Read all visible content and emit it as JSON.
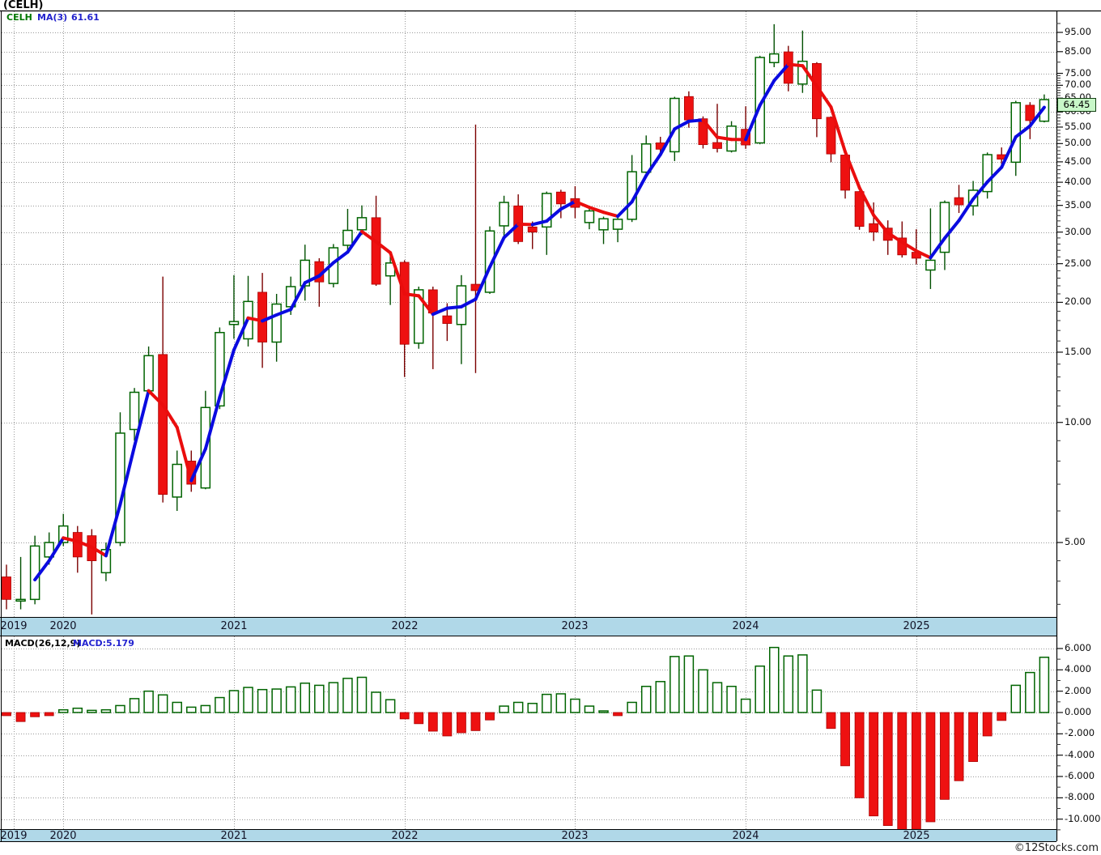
{
  "header": {
    "title": "(CELH)",
    "legend_symbol": "CELH",
    "legend_ma_label": "MA(3)",
    "legend_ma_value": "61.61"
  },
  "macd_panel": {
    "param_label": "MACD(26,12,9)",
    "value_label": "MACD:5.179"
  },
  "current_price_tag": "64.45",
  "watermark": "©12Stocks.com",
  "colors": {
    "candle_up_stroke": "#006400",
    "candle_up_wick": "#004f00",
    "candle_down_fill": "#ee1111",
    "candle_down_wick": "#7b0000",
    "ma_rising": "#0a0ae0",
    "ma_falling": "#ea0d0d",
    "grid": "#999999",
    "axis_band": "#b0d8e8",
    "tag_bg": "#c8f7c8",
    "macd_up_stroke": "#006400",
    "macd_down_fill": "#ee1111"
  },
  "x_axis": {
    "years": [
      "2019",
      "2020",
      "2021",
      "2022",
      "2023",
      "2024",
      "2025"
    ],
    "tick_x": [
      17,
      78,
      289,
      500,
      710,
      921,
      1132
    ]
  },
  "price_axis": {
    "labels": [
      {
        "value": 95,
        "label": "95.00"
      },
      {
        "value": 85,
        "label": "85.00"
      },
      {
        "value": 75,
        "label": "75.00"
      },
      {
        "value": 70,
        "label": "70.00"
      },
      {
        "value": 65,
        "label": "65.00"
      },
      {
        "value": 60,
        "label": "60.00"
      },
      {
        "value": 55,
        "label": "55.00"
      },
      {
        "value": 50,
        "label": "50.00"
      },
      {
        "value": 45,
        "label": "45.00"
      },
      {
        "value": 40,
        "label": "40.00"
      },
      {
        "value": 35,
        "label": "35.00"
      },
      {
        "value": 30,
        "label": "30.00"
      },
      {
        "value": 25,
        "label": "25.00"
      },
      {
        "value": 20,
        "label": "20.00"
      },
      {
        "value": 15,
        "label": "15.00"
      },
      {
        "value": 10,
        "label": "10.00"
      },
      {
        "value": 5,
        "label": "5.00"
      }
    ],
    "scale": "log"
  },
  "macd_axis": {
    "labels": [
      {
        "value": 6,
        "label": "6.000"
      },
      {
        "value": 4,
        "label": "4.000"
      },
      {
        "value": 2,
        "label": "2.000"
      },
      {
        "value": 0,
        "label": "0.000"
      },
      {
        "value": -2,
        "label": "-2.000"
      },
      {
        "value": -4,
        "label": "-4.000"
      },
      {
        "value": -6,
        "label": "-6.000"
      },
      {
        "value": -8,
        "label": "-8.000"
      },
      {
        "value": -10,
        "label": "-10.000"
      }
    ]
  },
  "chart_data": {
    "type": "candlestick",
    "title": "(CELH)",
    "symbol": "CELH",
    "interval": "monthly",
    "price_scale": "log",
    "price_ylim": [
      3.2,
      100
    ],
    "overlay": {
      "name": "MA(3)",
      "period": 3,
      "last_value": 61.61,
      "style": "colored by slope: blue rising, red falling"
    },
    "indicator": {
      "name": "MACD(26,12,9)",
      "last_value": 5.179,
      "ylim": [
        -11.5,
        6.5
      ],
      "grid_step": 2
    },
    "months": [
      "2019-09",
      "2019-10",
      "2019-11",
      "2019-12",
      "2020-01",
      "2020-02",
      "2020-03",
      "2020-04",
      "2020-05",
      "2020-06",
      "2020-07",
      "2020-08",
      "2020-09",
      "2020-10",
      "2020-11",
      "2020-12",
      "2021-01",
      "2021-02",
      "2021-03",
      "2021-04",
      "2021-05",
      "2021-06",
      "2021-07",
      "2021-08",
      "2021-09",
      "2021-10",
      "2021-11",
      "2021-12",
      "2022-01",
      "2022-02",
      "2022-03",
      "2022-04",
      "2022-05",
      "2022-06",
      "2022-07",
      "2022-08",
      "2022-09",
      "2022-10",
      "2022-11",
      "2022-12",
      "2023-01",
      "2023-02",
      "2023-03",
      "2023-04",
      "2023-05",
      "2023-06",
      "2023-07",
      "2023-08",
      "2023-09",
      "2023-10",
      "2023-11",
      "2023-12",
      "2024-01",
      "2024-02",
      "2024-03",
      "2024-04",
      "2024-05",
      "2024-06",
      "2024-07",
      "2024-08",
      "2024-09",
      "2024-10",
      "2024-11",
      "2024-12",
      "2025-01",
      "2025-02",
      "2025-03",
      "2025-04",
      "2025-05",
      "2025-06",
      "2025-07",
      "2025-08",
      "2025-09",
      "2025-10"
    ],
    "ohlc": [
      [
        4.1,
        4.4,
        3.4,
        3.6
      ],
      [
        3.6,
        4.6,
        3.4,
        3.6
      ],
      [
        3.6,
        5.2,
        3.5,
        4.9
      ],
      [
        4.6,
        5.3,
        4.4,
        5.0
      ],
      [
        5.0,
        5.9,
        4.9,
        5.5
      ],
      [
        5.3,
        5.5,
        4.2,
        4.6
      ],
      [
        5.2,
        5.4,
        3.3,
        4.5
      ],
      [
        4.2,
        5.0,
        4.0,
        4.8
      ],
      [
        5.0,
        10.6,
        4.9,
        9.4
      ],
      [
        9.6,
        12.2,
        9.0,
        11.9
      ],
      [
        12.0,
        15.5,
        11.8,
        14.7
      ],
      [
        14.8,
        23.2,
        6.3,
        6.6
      ],
      [
        6.5,
        8.5,
        6.0,
        7.85
      ],
      [
        8.0,
        8.5,
        6.7,
        7.0
      ],
      [
        6.85,
        12.0,
        6.8,
        10.9
      ],
      [
        11.0,
        17.3,
        10.8,
        16.8
      ],
      [
        17.6,
        23.4,
        16.2,
        17.9
      ],
      [
        16.2,
        23.3,
        15.5,
        20.1
      ],
      [
        21.2,
        23.7,
        13.7,
        15.9
      ],
      [
        15.9,
        21.0,
        14.2,
        19.8
      ],
      [
        19.5,
        23.2,
        18.6,
        21.9
      ],
      [
        22.0,
        27.9,
        20.2,
        25.5
      ],
      [
        25.3,
        25.8,
        19.5,
        22.5
      ],
      [
        22.3,
        28.0,
        21.8,
        27.4
      ],
      [
        27.8,
        34.3,
        27.0,
        30.3
      ],
      [
        30.4,
        35.0,
        29.5,
        32.6
      ],
      [
        32.6,
        37.0,
        22.0,
        22.2
      ],
      [
        23.3,
        26.2,
        19.7,
        25.1
      ],
      [
        25.2,
        25.5,
        13.0,
        15.7
      ],
      [
        15.8,
        21.9,
        15.3,
        21.5
      ],
      [
        21.5,
        21.9,
        13.6,
        18.8
      ],
      [
        18.5,
        19.9,
        16.0,
        17.7
      ],
      [
        17.6,
        23.4,
        14.0,
        22.0
      ],
      [
        22.2,
        55.8,
        13.3,
        21.4
      ],
      [
        21.2,
        31.0,
        21.0,
        30.2
      ],
      [
        31.1,
        37.0,
        28.6,
        35.6
      ],
      [
        34.9,
        37.3,
        28.0,
        28.4
      ],
      [
        30.9,
        31.9,
        27.2,
        30.0
      ],
      [
        30.9,
        37.9,
        26.3,
        37.5
      ],
      [
        37.8,
        38.3,
        32.5,
        35.3
      ],
      [
        36.4,
        39.1,
        32.5,
        34.6
      ],
      [
        31.7,
        34.5,
        30.5,
        33.9
      ],
      [
        30.4,
        32.8,
        28.0,
        32.4
      ],
      [
        30.5,
        32.8,
        28.3,
        32.3
      ],
      [
        32.3,
        46.8,
        31.8,
        42.5
      ],
      [
        42.4,
        52.4,
        41.8,
        49.9
      ],
      [
        50.2,
        52.0,
        47.5,
        48.4
      ],
      [
        47.7,
        65.5,
        45.2,
        64.9
      ],
      [
        65.6,
        67.6,
        54.8,
        57.3
      ],
      [
        57.7,
        58.5,
        48.6,
        49.7
      ],
      [
        50.3,
        62.9,
        47.5,
        48.6
      ],
      [
        47.9,
        56.9,
        47.5,
        55.3
      ],
      [
        54.3,
        62.0,
        48.5,
        49.6
      ],
      [
        50.2,
        83.0,
        49.8,
        82.2
      ],
      [
        79.8,
        99.6,
        77.7,
        83.9
      ],
      [
        84.9,
        87.9,
        67.6,
        70.8
      ],
      [
        70.5,
        96.0,
        67.0,
        80.4
      ],
      [
        79.4,
        80.0,
        51.9,
        57.7
      ],
      [
        58.2,
        58.5,
        44.9,
        47.1
      ],
      [
        46.8,
        47.0,
        36.4,
        38.2
      ],
      [
        37.9,
        38.0,
        30.4,
        31.0
      ],
      [
        31.5,
        35.6,
        28.5,
        30.0
      ],
      [
        30.7,
        32.1,
        26.3,
        28.6
      ],
      [
        29.0,
        31.9,
        25.9,
        26.3
      ],
      [
        26.7,
        30.5,
        24.9,
        25.8
      ],
      [
        24.1,
        34.4,
        21.6,
        25.5
      ],
      [
        26.7,
        36.0,
        24.1,
        35.6
      ],
      [
        36.6,
        39.4,
        33.5,
        35.1
      ],
      [
        34.9,
        40.3,
        33.0,
        38.2
      ],
      [
        37.9,
        47.5,
        36.4,
        46.9
      ],
      [
        46.9,
        48.9,
        44.4,
        45.7
      ],
      [
        44.9,
        64.0,
        41.5,
        63.3
      ],
      [
        62.4,
        63.5,
        51.3,
        57.1
      ],
      [
        56.9,
        66.4,
        56.5,
        64.45
      ]
    ],
    "macd_hist": [
      -0.3,
      -0.85,
      -0.4,
      -0.3,
      0.25,
      0.4,
      0.2,
      0.25,
      0.65,
      1.3,
      2.0,
      1.65,
      0.95,
      0.5,
      0.65,
      1.4,
      2.05,
      2.35,
      2.15,
      2.2,
      2.4,
      2.75,
      2.55,
      2.8,
      3.2,
      3.3,
      1.9,
      1.2,
      -0.6,
      -1.05,
      -1.75,
      -2.2,
      -1.9,
      -1.7,
      -0.7,
      0.6,
      0.95,
      0.85,
      1.7,
      1.75,
      1.25,
      0.6,
      0.15,
      -0.3,
      0.95,
      2.45,
      2.9,
      5.25,
      5.3,
      4.0,
      2.8,
      2.45,
      1.25,
      4.35,
      6.1,
      5.3,
      5.4,
      2.1,
      -1.5,
      -5.0,
      -8.0,
      -9.7,
      -10.6,
      -11.05,
      -10.95,
      -10.25,
      -8.15,
      -6.4,
      -4.6,
      -2.2,
      -0.75,
      2.55,
      3.75,
      5.179
    ]
  }
}
